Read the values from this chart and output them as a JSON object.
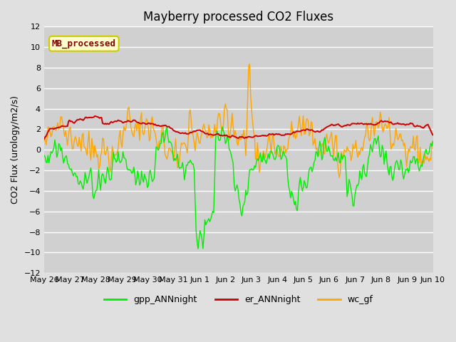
{
  "title": "Mayberry processed CO2 Fluxes",
  "ylabel": "CO2 Flux (urology/m2/s)",
  "ylim": [
    -12,
    12
  ],
  "yticks": [
    -12,
    -10,
    -8,
    -6,
    -4,
    -2,
    0,
    2,
    4,
    6,
    8,
    10,
    12
  ],
  "fig_bg_color": "#e0e0e0",
  "axes_bg_color": "#d0d0d0",
  "grid_color": "#ffffff",
  "title_fontsize": 12,
  "label_fontsize": 9,
  "tick_fontsize": 8,
  "legend_label": "MB_processed",
  "legend_text_color": "#8b0000",
  "legend_box_facecolor": "#ffffcc",
  "legend_box_edgecolor": "#cccc00",
  "line_colors": {
    "gpp": "#00ee00",
    "er": "#cc0000",
    "wc": "#ffa500"
  },
  "line_widths": {
    "gpp": 1.0,
    "er": 1.4,
    "wc": 1.0
  },
  "n_points": 400,
  "xtick_labels": [
    "May 26",
    "May 27",
    "May 28",
    "May 29",
    "May 30",
    "May 31",
    "Jun 1",
    "Jun 2",
    "Jun 3",
    "Jun 4",
    "Jun 5",
    "Jun 6",
    "Jun 7",
    "Jun 8",
    "Jun 9",
    "Jun 10"
  ],
  "seed": 7
}
